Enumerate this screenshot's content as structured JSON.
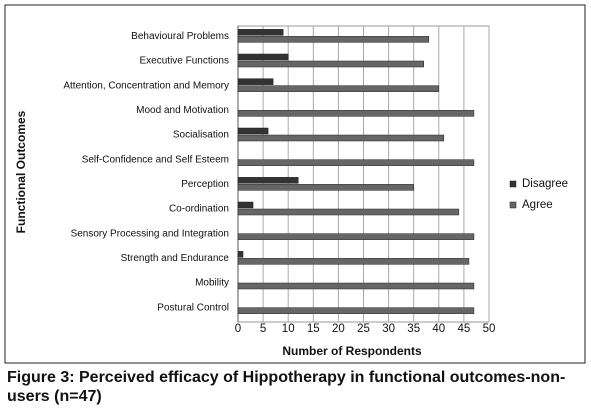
{
  "chart_data": {
    "type": "hbar",
    "title": "Figure 3: Perceived efficacy of Hippotherapy in functional outcomes-non-users (n=47)",
    "x_label": "Number of Respondents",
    "y_label": "Functional Outcomes",
    "categories": [
      "Behavioural Problems",
      "Executive Functions",
      "Attention, Concentration and Memory",
      "Mood and Motivation",
      "Socialisation",
      "Self-Confidence and Self Esteem",
      "Perception",
      "Co-ordination",
      "Sensory Processing and Integration",
      "Strength and Endurance",
      "Mobility",
      "Postural Control"
    ],
    "series": [
      {
        "name": "Disagree",
        "color": "#333333",
        "values": [
          9,
          10,
          7,
          0,
          6,
          0,
          12,
          3,
          0,
          1,
          0,
          0
        ]
      },
      {
        "name": "Agree",
        "color": "#666666",
        "values": [
          38,
          37,
          40,
          47,
          41,
          47,
          35,
          44,
          47,
          46,
          47,
          47
        ]
      }
    ],
    "xlim": [
      0,
      50
    ],
    "xticks": [
      0,
      5,
      10,
      15,
      20,
      25,
      30,
      35,
      40,
      45,
      50
    ],
    "grid": true,
    "legend": "right"
  }
}
